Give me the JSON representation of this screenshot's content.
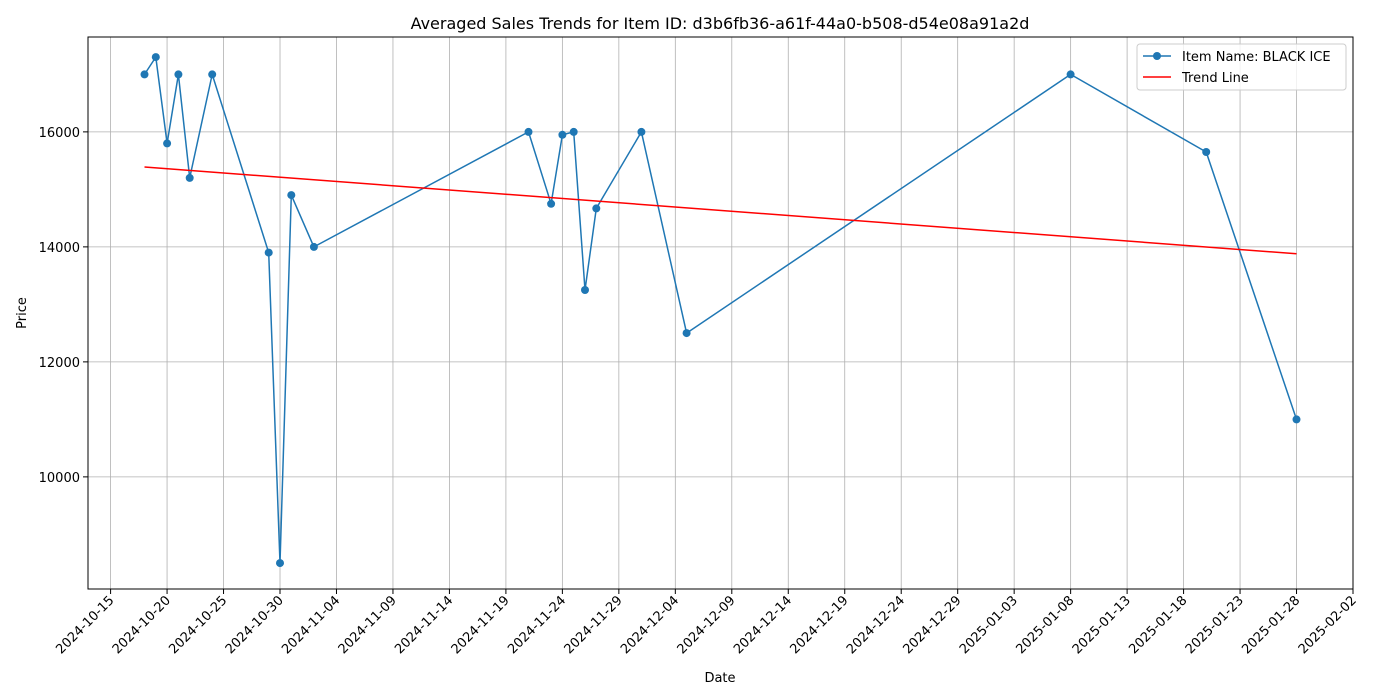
{
  "chart_data": {
    "type": "line",
    "title": "Averaged Sales Trends for Item ID: d3b6fb36-a61f-44a0-b508-d54e08a91a2d",
    "xlabel": "Date",
    "ylabel": "Price",
    "x_axis_type": "date",
    "xlim": [
      "2024-10-13",
      "2025-02-02"
    ],
    "ylim": [
      8050,
      17650
    ],
    "grid": true,
    "legend_position": "top-right",
    "x_ticks": [
      "2024-10-15",
      "2024-10-20",
      "2024-10-25",
      "2024-10-30",
      "2024-11-04",
      "2024-11-09",
      "2024-11-14",
      "2024-11-19",
      "2024-11-24",
      "2024-11-29",
      "2024-12-04",
      "2024-12-09",
      "2024-12-14",
      "2024-12-19",
      "2024-12-24",
      "2024-12-29",
      "2025-01-03",
      "2025-01-08",
      "2025-01-13",
      "2025-01-18",
      "2025-01-23",
      "2025-01-28",
      "2025-02-02"
    ],
    "y_ticks": [
      10000,
      12000,
      14000,
      16000
    ],
    "series": [
      {
        "name": "Item Name: BLACK ICE",
        "color": "#1f77b4",
        "marker": "circle",
        "points": [
          {
            "x": "2024-10-18",
            "y": 17000
          },
          {
            "x": "2024-10-19",
            "y": 17300
          },
          {
            "x": "2024-10-20",
            "y": 15800
          },
          {
            "x": "2024-10-21",
            "y": 17000
          },
          {
            "x": "2024-10-22",
            "y": 15200
          },
          {
            "x": "2024-10-24",
            "y": 17000
          },
          {
            "x": "2024-10-29",
            "y": 13900
          },
          {
            "x": "2024-10-30",
            "y": 8500
          },
          {
            "x": "2024-10-31",
            "y": 14900
          },
          {
            "x": "2024-11-02",
            "y": 14000
          },
          {
            "x": "2024-11-21",
            "y": 16000
          },
          {
            "x": "2024-11-23",
            "y": 14750
          },
          {
            "x": "2024-11-24",
            "y": 15950
          },
          {
            "x": "2024-11-25",
            "y": 16000
          },
          {
            "x": "2024-11-26",
            "y": 13250
          },
          {
            "x": "2024-11-27",
            "y": 14670
          },
          {
            "x": "2024-12-01",
            "y": 16000
          },
          {
            "x": "2024-12-05",
            "y": 12500
          },
          {
            "x": "2025-01-08",
            "y": 17000
          },
          {
            "x": "2025-01-20",
            "y": 15650
          },
          {
            "x": "2025-01-28",
            "y": 11000
          }
        ]
      },
      {
        "name": "Trend Line",
        "color": "#ff0000",
        "marker": "none",
        "points": [
          {
            "x": "2024-10-18",
            "y": 15390
          },
          {
            "x": "2025-01-28",
            "y": 13880
          }
        ]
      }
    ]
  }
}
